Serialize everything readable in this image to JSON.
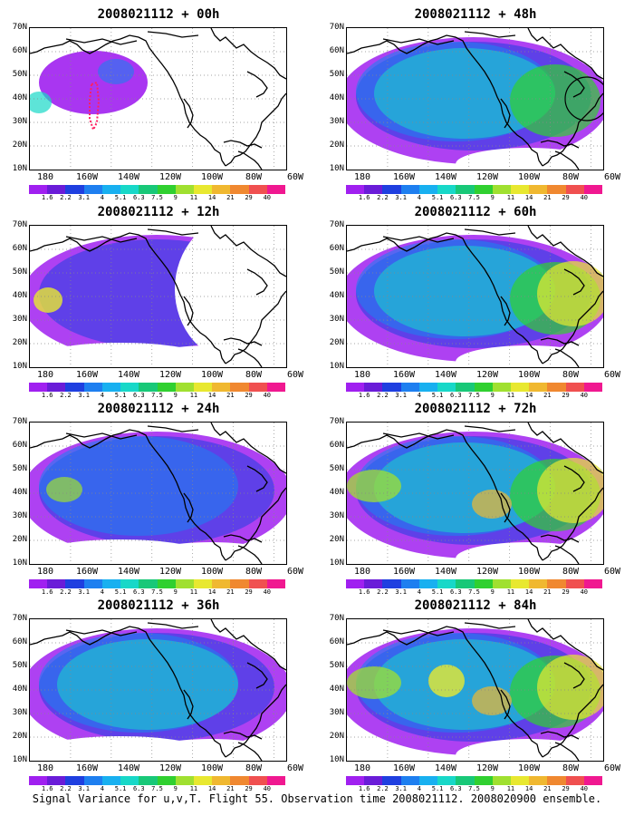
{
  "panels": [
    {
      "title": "2008021112 + 00h"
    },
    {
      "title": "2008021112 + 48h"
    },
    {
      "title": "2008021112 + 12h"
    },
    {
      "title": "2008021112 + 60h"
    },
    {
      "title": "2008021112 + 24h"
    },
    {
      "title": "2008021112 + 72h"
    },
    {
      "title": "2008021112 + 36h"
    },
    {
      "title": "2008021112 + 84h"
    }
  ],
  "axes": {
    "lat_labels": [
      "70N",
      "60N",
      "50N",
      "40N",
      "30N",
      "20N",
      "10N"
    ],
    "lon_labels": [
      "180",
      "160W",
      "140W",
      "120W",
      "100W",
      "80W",
      "60W"
    ]
  },
  "colorbar": {
    "labels": [
      "1.6",
      "2.2",
      "3.1",
      "4",
      "5.1",
      "6.3",
      "7.5",
      "9",
      "11",
      "14",
      "21",
      "29",
      "40"
    ],
    "colors": [
      "#a020f0",
      "#6a1cd8",
      "#1f3fe0",
      "#1e7ff0",
      "#18b0f0",
      "#18d8c8",
      "#18c878",
      "#30d030",
      "#a0e030",
      "#e8e830",
      "#f0b830",
      "#f08830",
      "#f05050",
      "#f01890"
    ]
  },
  "caption": "Signal Variance for u,v,T. Flight 55. Observation time 2008021112. 2008020900 ensemble."
}
